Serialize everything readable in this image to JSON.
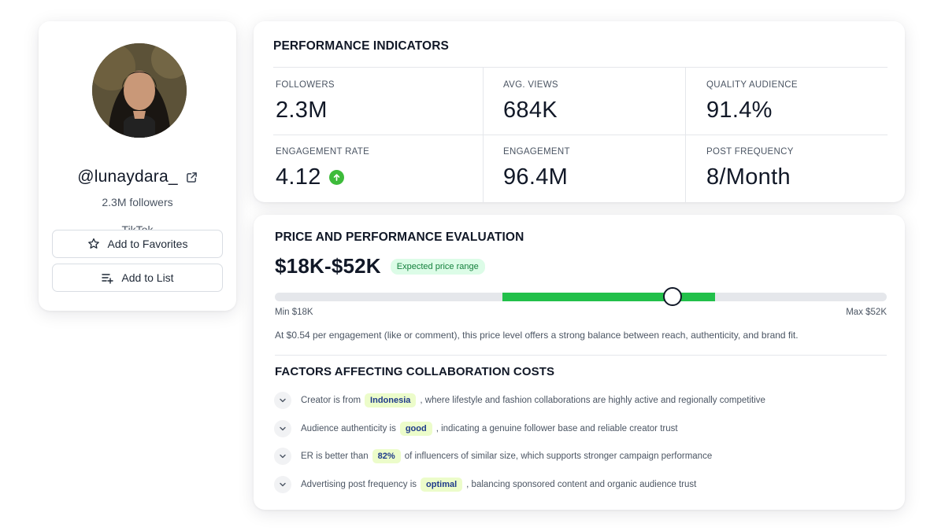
{
  "profile": {
    "handle": "@lunaydara_",
    "followers": "2.3M followers",
    "platform": "TikTok",
    "favorites_label": "Add to Favorites",
    "list_label": "Add to List"
  },
  "performance": {
    "title": "PERFORMANCE INDICATORS",
    "metrics": [
      {
        "label": "FOLLOWERS",
        "value": "2.3M"
      },
      {
        "label": "AVG. VIEWS",
        "value": "684K"
      },
      {
        "label": "QUALITY AUDIENCE",
        "value": "91.4%"
      },
      {
        "label": "ENGAGEMENT RATE",
        "value": "4.12",
        "trend": "up"
      },
      {
        "label": "ENGAGEMENT",
        "value": "96.4M"
      },
      {
        "label": "POST FREQUENCY",
        "value": "8/Month"
      }
    ]
  },
  "price": {
    "title": "PRICE AND PERFORMANCE EVALUATION",
    "range": "$18K-$52K",
    "pill": "Expected price range",
    "min_label": "Min $18K",
    "max_label": "Max $52K",
    "slider": {
      "highlight_start": 0.372,
      "highlight_end": 0.719,
      "marker": 0.65
    },
    "description": "At $0.54 per engagement (like or comment), this price level offers a strong balance between reach, authenticity, and brand fit.",
    "factors_title": "FACTORS AFFECTING COLLABORATION COSTS",
    "factors": [
      {
        "before": "Creator is from",
        "highlight": "Indonesia",
        "after": ", where lifestyle and fashion collaborations are highly active and regionally competitive"
      },
      {
        "before": "Audience authenticity is",
        "highlight": "good",
        "after": ", indicating a genuine follower base and reliable creator trust"
      },
      {
        "before": "ER is better than",
        "highlight": "82%",
        "after": "of influencers of similar size, which supports stronger campaign performance"
      },
      {
        "before": "Advertising post frequency is",
        "highlight": "optimal",
        "after": ", balancing sponsored content and organic audience trust"
      }
    ]
  },
  "colors": {
    "accent_green": "#22c04a",
    "trend_up": "#3dbb3a",
    "highlight_bg": "#ecfcca",
    "highlight_text": "#1e3a8a"
  },
  "icons": [
    "external-link-icon",
    "star-icon",
    "list-add-icon",
    "arrow-up-icon",
    "chevron-down-icon"
  ]
}
